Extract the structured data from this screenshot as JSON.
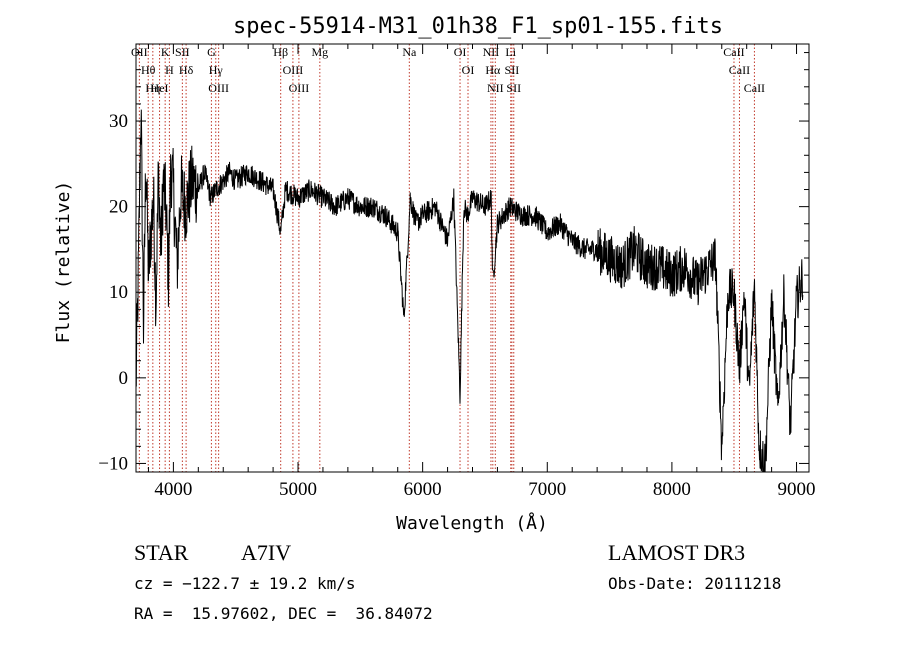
{
  "chart_data": {
    "type": "line",
    "title": "spec-55914-M31_01h38_F1_sp01-155.fits",
    "xlabel": "Wavelength (Å)",
    "ylabel": "Flux (relative)",
    "xlim": [
      3700,
      9100
    ],
    "ylim": [
      -11,
      39
    ],
    "xticks": [
      4000,
      5000,
      6000,
      7000,
      8000,
      9000
    ],
    "yticks": [
      -10,
      0,
      10,
      20,
      30
    ],
    "series": [
      {
        "name": "flux",
        "x": [
          3700,
          3720,
          3740,
          3760,
          3780,
          3800,
          3820,
          3840,
          3860,
          3880,
          3900,
          3920,
          3940,
          3960,
          3980,
          4000,
          4030,
          4060,
          4100,
          4150,
          4200,
          4250,
          4300,
          4340,
          4400,
          4450,
          4500,
          4600,
          4700,
          4800,
          4861,
          4900,
          5000,
          5100,
          5200,
          5300,
          5400,
          5500,
          5600,
          5700,
          5800,
          5850,
          5890,
          5900,
          5950,
          6000,
          6100,
          6200,
          6250,
          6300,
          6330,
          6360,
          6400,
          6500,
          6550,
          6563,
          6600,
          6650,
          6700,
          6800,
          6900,
          7000,
          7100,
          7200,
          7300,
          7400,
          7500,
          7600,
          7700,
          7800,
          7900,
          8000,
          8100,
          8200,
          8300,
          8350,
          8400,
          8450,
          8498,
          8542,
          8580,
          8620,
          8662,
          8700,
          8750,
          8800,
          8850,
          8900,
          8950,
          9000,
          9050
        ],
        "y": [
          -1,
          13,
          32,
          6,
          26,
          12,
          17,
          21,
          9,
          24,
          15,
          23,
          20,
          12,
          25,
          22,
          13,
          22,
          20,
          23,
          22,
          24,
          21,
          22,
          23,
          24,
          23,
          24,
          23,
          22,
          17,
          22,
          21,
          22,
          21,
          20,
          21,
          20,
          20,
          19,
          17,
          7,
          18,
          21,
          18,
          19,
          20,
          16,
          21,
          -2,
          20,
          19,
          21,
          20,
          21,
          11,
          18,
          19,
          20,
          19,
          19,
          17,
          18,
          16,
          15,
          15,
          14,
          13,
          15,
          13,
          13,
          12,
          13,
          11,
          13,
          14,
          -8,
          10,
          10,
          1,
          10,
          -2,
          11,
          -8,
          -10,
          9,
          -4,
          10,
          -6,
          9,
          12
        ]
      }
    ],
    "line_markers": [
      {
        "label": "OII",
        "wl": 3727
      },
      {
        "label": "Hθ",
        "wl": 3798
      },
      {
        "label": "Hη",
        "wl": 3835
      },
      {
        "label": "HeI",
        "wl": 3889
      },
      {
        "label": "K",
        "wl": 3934
      },
      {
        "label": "H",
        "wl": 3968
      },
      {
        "label": "SII",
        "wl": 4072
      },
      {
        "label": "Hδ",
        "wl": 4102
      },
      {
        "label": "G",
        "wl": 4305
      },
      {
        "label": "Hγ",
        "wl": 4340
      },
      {
        "label": "OIII",
        "wl": 4363
      },
      {
        "label": "Hβ",
        "wl": 4861
      },
      {
        "label": "OIII",
        "wl": 4959
      },
      {
        "label": "OIII",
        "wl": 5007
      },
      {
        "label": "Mg",
        "wl": 5175
      },
      {
        "label": "Na",
        "wl": 5893
      },
      {
        "label": "OI",
        "wl": 6300
      },
      {
        "label": "OI",
        "wl": 6364
      },
      {
        "label": "NII",
        "wl": 6548
      },
      {
        "label": "Hα",
        "wl": 6563
      },
      {
        "label": "NII",
        "wl": 6583
      },
      {
        "label": "Li",
        "wl": 6707
      },
      {
        "label": "SII",
        "wl": 6716
      },
      {
        "label": "SII",
        "wl": 6731
      },
      {
        "label": "CaII",
        "wl": 8498
      },
      {
        "label": "CaII",
        "wl": 8542
      },
      {
        "label": "CaII",
        "wl": 8662
      }
    ]
  },
  "info": {
    "class": "STAR",
    "subclass": "A7IV",
    "survey": "LAMOST DR3",
    "cz": "cz = −122.7 ± 19.2 km/s",
    "obs_date": "Obs-Date: 20111218",
    "radec": "RA =  15.97602, DEC =  36.84072"
  },
  "colors": {
    "marker": "#c0392b",
    "axis": "#000000",
    "spectrum": "#000000"
  }
}
